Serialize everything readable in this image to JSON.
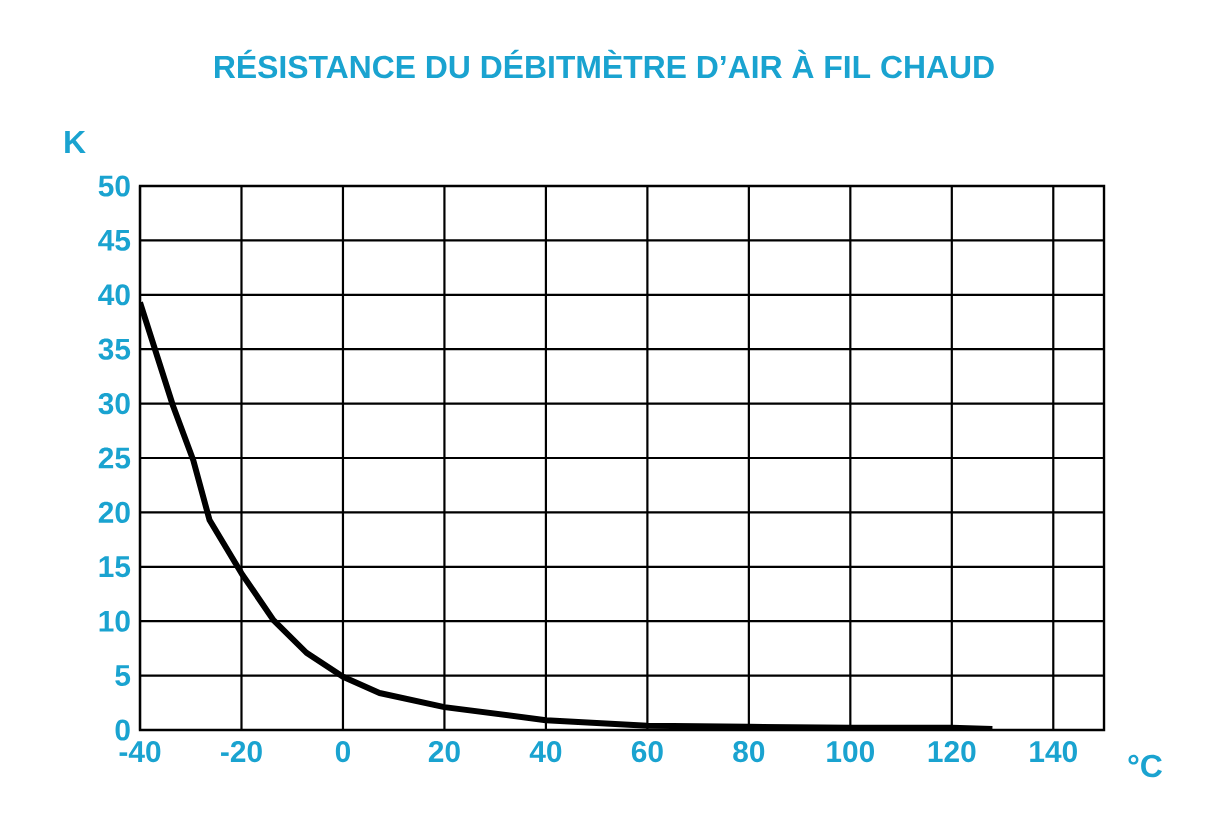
{
  "chart_data": {
    "type": "line",
    "title": "RÉSISTANCE DU DÉBITMÈTRE D’AIR À FIL CHAUD",
    "xlabel": "°C",
    "ylabel": "K",
    "x": [
      -40,
      -33.5,
      -29.5,
      -26.3,
      -20,
      -13.7,
      -7.2,
      0,
      7.2,
      20,
      40,
      60,
      80,
      100,
      120,
      128
    ],
    "series": [
      {
        "color": "#000000",
        "values": [
          39.3,
          29.8,
          24.8,
          19.3,
          14.4,
          10.1,
          7.1,
          4.9,
          3.4,
          2.1,
          0.9,
          0.4,
          0.3,
          0.2,
          0.2,
          0.1
        ]
      }
    ],
    "xlim": [
      -40,
      150
    ],
    "ylim": [
      0,
      50
    ],
    "xticks": [
      -40,
      -20,
      0,
      20,
      40,
      60,
      80,
      100,
      120,
      140
    ],
    "yticks": [
      0,
      5,
      10,
      15,
      20,
      25,
      30,
      35,
      40,
      45,
      50
    ],
    "grid": true,
    "marker": "none",
    "line_style": "solid"
  }
}
